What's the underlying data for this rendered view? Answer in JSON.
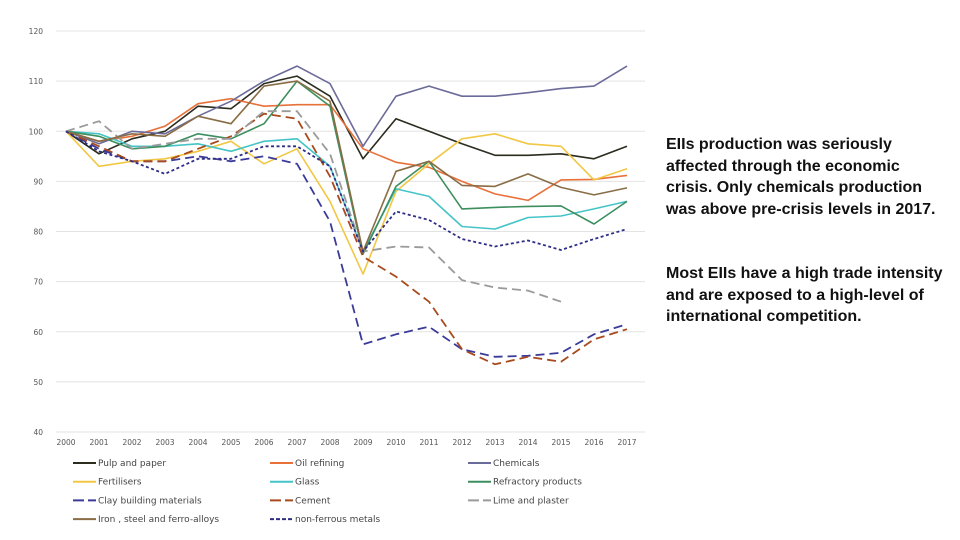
{
  "chart_data": {
    "type": "line",
    "x": [
      2000,
      2001,
      2002,
      2003,
      2004,
      2005,
      2006,
      2007,
      2008,
      2009,
      2010,
      2011,
      2012,
      2013,
      2014,
      2015,
      2016,
      2017
    ],
    "ylim": [
      40,
      120
    ],
    "yticks": [
      40,
      50,
      60,
      70,
      80,
      90,
      100,
      110,
      120
    ],
    "grid": true,
    "legend": "bottom",
    "series": [
      {
        "name": "Pulp and paper",
        "color": "#2b2b1e",
        "dash": "solid",
        "values": [
          100,
          95.5,
          98.5,
          100,
          105,
          104.5,
          109.5,
          111,
          107,
          94.5,
          102.5,
          100,
          97.5,
          95.2,
          95.2,
          95.5,
          94.5,
          97
        ]
      },
      {
        "name": "Oil refining",
        "color": "#e8713a",
        "dash": "solid",
        "values": [
          100,
          98,
          99,
          101,
          105.5,
          106.5,
          105,
          105.3,
          105.3,
          96.5,
          93.8,
          92.8,
          90,
          87.5,
          86.2,
          90.3,
          90.4,
          91.2
        ]
      },
      {
        "name": "Chemicals",
        "color": "#6b6b9a",
        "dash": "solid",
        "values": [
          100,
          97.5,
          100,
          99.5,
          103,
          106,
          110,
          113,
          109.5,
          97,
          107,
          109,
          107,
          107,
          107.7,
          108.5,
          109,
          113
        ]
      },
      {
        "name": "Fertilisers",
        "color": "#f2c744",
        "dash": "solid",
        "values": [
          100,
          93,
          94,
          94.5,
          96,
          98,
          93.5,
          96.5,
          86,
          71.5,
          88,
          93.5,
          98.5,
          99.5,
          97.5,
          97,
          90.3,
          92.5
        ]
      },
      {
        "name": "Glass",
        "color": "#45c4c8",
        "dash": "solid",
        "values": [
          100,
          99.5,
          97,
          97,
          97.5,
          96,
          98,
          98.5,
          93,
          76,
          88.5,
          87,
          81,
          80.5,
          82.8,
          83.1,
          84.5,
          86
        ]
      },
      {
        "name": "Refractory products",
        "color": "#3d8f5f",
        "dash": "solid",
        "values": [
          100,
          99,
          96.5,
          97,
          99.5,
          98.5,
          101.5,
          110,
          105,
          75.5,
          89,
          94,
          84.5,
          84.8,
          85,
          85.1,
          81.5,
          86
        ]
      },
      {
        "name": "Clay building materials",
        "color": "#3b3b9a",
        "dash": "long",
        "values": [
          100,
          96.5,
          94,
          94,
          95,
          94,
          95,
          93.5,
          82,
          57.5,
          59.5,
          61,
          56.5,
          55,
          55.2,
          55.8,
          59.5,
          61.5
        ]
      },
      {
        "name": "Cement",
        "color": "#a84a1e",
        "dash": "long",
        "values": [
          100,
          97,
          94,
          94,
          96.5,
          99,
          103.5,
          102.5,
          91,
          75,
          71,
          66,
          56.5,
          53.5,
          55,
          54,
          58.5,
          60.5
        ]
      },
      {
        "name": "Lime and plaster",
        "color": "#9a9a9a",
        "dash": "long",
        "values": [
          100,
          102,
          96.5,
          97.5,
          98.5,
          98.5,
          104,
          104,
          95.5,
          76,
          77,
          76.8,
          70.3,
          68.8,
          68.2,
          66,
          null,
          null
        ]
      },
      {
        "name": "Iron , steel and ferro-alloys",
        "color": "#8a6d45",
        "dash": "solid",
        "values": [
          100,
          98,
          99.5,
          99,
          103,
          101.5,
          109,
          110,
          106,
          76,
          92,
          94,
          89.2,
          89,
          91.5,
          88.8,
          87.3,
          88.7
        ]
      },
      {
        "name": "non-ferrous metals",
        "color": "#2e2e86",
        "dash": "short",
        "values": [
          100,
          96,
          94,
          91.5,
          94.5,
          94.5,
          97,
          97,
          93,
          76,
          84,
          82.3,
          78.5,
          77,
          78.2,
          76.3,
          78.5,
          80.5
        ]
      }
    ]
  },
  "text": {
    "para1": "EIIs production was seriously affected through the economic crisis. Only chemicals production was above pre-crisis levels in 2017.",
    "para2": "Most EIIs have a high trade intensity and are exposed to a high-level of international competition."
  }
}
